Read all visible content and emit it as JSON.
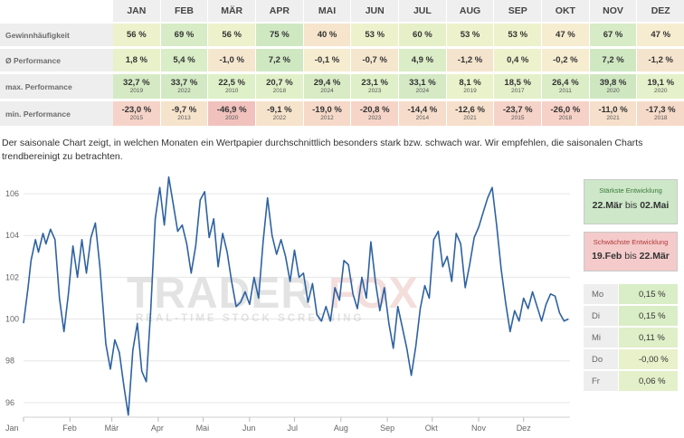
{
  "table": {
    "months": [
      "JAN",
      "FEB",
      "MÄR",
      "APR",
      "MAI",
      "JUN",
      "JUL",
      "AUG",
      "SEP",
      "OKT",
      "NOV",
      "DEZ"
    ],
    "rows": [
      {
        "label": "Gewinnhäufigkeit",
        "values": [
          "56 %",
          "69 %",
          "56 %",
          "75 %",
          "40 %",
          "53 %",
          "60 %",
          "53 %",
          "53 %",
          "47 %",
          "67 %",
          "47 %"
        ]
      },
      {
        "label": "Ø Performance",
        "values": [
          "1,8 %",
          "5,4 %",
          "-1,0 %",
          "7,2 %",
          "-0,1 %",
          "-0,7 %",
          "4,9 %",
          "-1,2 %",
          "0,4 %",
          "-0,2 %",
          "7,2 %",
          "-1,2 %"
        ]
      },
      {
        "label": "max. Performance",
        "values": [
          "32,7 %",
          "33,7 %",
          "22,5 %",
          "20,7 %",
          "29,4 %",
          "23,1 %",
          "33,1 %",
          "8,1 %",
          "18,5 %",
          "26,4 %",
          "39,8 %",
          "19,1 %"
        ],
        "years": [
          "2019",
          "2022",
          "2010",
          "2018",
          "2024",
          "2023",
          "2024",
          "2019",
          "2017",
          "2011",
          "2020",
          "2020"
        ]
      },
      {
        "label": "min. Performance",
        "values": [
          "-23,0 %",
          "-9,7 %",
          "-46,9 %",
          "-9,1 %",
          "-19,0 %",
          "-20,8 %",
          "-14,4 %",
          "-12,6 %",
          "-23,7 %",
          "-26,0 %",
          "-11,0 %",
          "-17,3 %"
        ],
        "years": [
          "2015",
          "2013",
          "2020",
          "2022",
          "2012",
          "2023",
          "2014",
          "2021",
          "2015",
          "2018",
          "2021",
          "2018"
        ]
      }
    ],
    "colors": {
      "row0": [
        "#eef2cc",
        "#d7ecc6",
        "#eef2cc",
        "#cfe8c2",
        "#f7e4cc",
        "#eef2cc",
        "#e6f0c8",
        "#eef2cc",
        "#eef2cc",
        "#f6ecd0",
        "#d7ecc6",
        "#f6ecd0"
      ],
      "row1": [
        "#e8f1ca",
        "#d9edc6",
        "#f5e6ce",
        "#cfe8c2",
        "#f6ecd0",
        "#f5e6ce",
        "#daedc6",
        "#f5e4cd",
        "#eef2cc",
        "#f6ecd0",
        "#cfe8c2",
        "#f5e4cd"
      ],
      "row2": [
        "#d5eac4",
        "#d2e9c3",
        "#def0c8",
        "#e2f0c9",
        "#d8ebc5",
        "#dfefc8",
        "#d4e9c4",
        "#eaf2cb",
        "#e3f0c9",
        "#dbedc6",
        "#cfe7c1",
        "#e5f1ca"
      ],
      "row3": [
        "#f6d3c8",
        "#f6e3cc",
        "#f1c2bd",
        "#f6e3cc",
        "#f6d9c9",
        "#f6d5c8",
        "#f6ddcb",
        "#f6dfcb",
        "#f6d3c8",
        "#f6d1c7",
        "#f6e0cb",
        "#f6dac9"
      ]
    }
  },
  "description": "Der saisonale Chart zeigt, in welchen Monaten ein Wertpapier durchschnittlich besonders stark bzw. schwach war. Wir empfehlen, die saisonalen Charts trendbereinigt zu betrachten.",
  "chart_data": {
    "type": "line",
    "series": [
      {
        "x": [
          0,
          3,
          5,
          8,
          10,
          13,
          15,
          18,
          21,
          24,
          27,
          30,
          33,
          36,
          39,
          42,
          45,
          48,
          51,
          55,
          58,
          61,
          64,
          67,
          70,
          73,
          76,
          79,
          82,
          85,
          88,
          91,
          94,
          97,
          100,
          103,
          106,
          109,
          112,
          115,
          118,
          121,
          124,
          127,
          130,
          133,
          136,
          139,
          142,
          145,
          148,
          151,
          154,
          157,
          160,
          163,
          166,
          169,
          172,
          175,
          178,
          181,
          184,
          187,
          190,
          193,
          196,
          199,
          202,
          205,
          208,
          211,
          214,
          217,
          220,
          223,
          226,
          229,
          232,
          235,
          238,
          241,
          244,
          247,
          250,
          253,
          256,
          259,
          262,
          265,
          268,
          271,
          274,
          277,
          280,
          283,
          286,
          289,
          292,
          295,
          298,
          301,
          304,
          307,
          310,
          313,
          316,
          319,
          322,
          325,
          328,
          331,
          334,
          337,
          340,
          343,
          346,
          349,
          352,
          355,
          358,
          361,
          364
        ],
        "y": [
          99.8,
          101.5,
          102.8,
          103.8,
          103.2,
          104.1,
          103.6,
          104.3,
          103.8,
          101.0,
          99.4,
          101.2,
          103.5,
          102.0,
          103.8,
          102.2,
          103.9,
          104.6,
          102.5,
          98.8,
          97.6,
          99.0,
          98.4,
          96.8,
          95.4,
          98.5,
          99.8,
          97.5,
          97.0,
          100.5,
          104.8,
          106.3,
          104.5,
          106.8,
          105.5,
          104.2,
          104.5,
          103.6,
          102.2,
          103.5,
          105.7,
          106.1,
          103.9,
          104.8,
          102.5,
          104.1,
          103.2,
          101.8,
          100.6,
          100.8,
          101.3,
          100.7,
          102.0,
          101.0,
          103.7,
          105.8,
          104.0,
          103.1,
          103.8,
          103.0,
          101.8,
          103.3,
          102.0,
          102.2,
          100.8,
          101.7,
          100.2,
          99.9,
          100.6,
          99.9,
          101.5,
          100.9,
          102.8,
          102.6,
          101.2,
          100.5,
          102.0,
          101.0,
          103.7,
          101.8,
          100.4,
          101.5,
          99.8,
          98.6,
          100.6,
          99.6,
          98.6,
          97.3,
          98.7,
          100.5,
          101.6,
          101.0,
          103.8,
          104.2,
          102.5,
          103.0,
          101.8,
          104.1,
          103.6,
          101.5,
          102.6,
          103.9,
          104.4,
          105.1,
          105.8,
          106.3,
          104.5,
          102.4,
          100.8,
          99.4,
          100.4,
          99.9,
          101.0,
          100.5,
          101.3,
          100.6,
          99.9,
          100.7,
          101.2,
          101.1,
          100.3,
          99.9,
          100.0
        ],
        "color": "#2e62a1"
      }
    ],
    "x_tick_labels": [
      "Jan",
      "Feb",
      "Mär",
      "Apr",
      "Mai",
      "Jun",
      "Jul",
      "Aug",
      "Sep",
      "Okt",
      "Nov",
      "Dez"
    ],
    "x_tick_positions": [
      0,
      31,
      59,
      90,
      120,
      151,
      181,
      212,
      243,
      273,
      304,
      334
    ],
    "y_ticks": [
      96,
      98,
      100,
      102,
      104,
      106
    ],
    "ylim": [
      95.3,
      107.0
    ],
    "xlim": [
      0,
      365
    ],
    "grid": true
  },
  "watermark": {
    "brand_a": "TRADER",
    "brand_b": "FOX",
    "tagline": "REAL-TIME STOCK SCREENING"
  },
  "strongest": {
    "title": "Stärkste Entwicklung",
    "from": "22.Mär",
    "connector": "bis",
    "to": "02.Mai"
  },
  "weakest": {
    "title": "Schwächste Entwicklung",
    "from": "19.Feb",
    "connector": "bis",
    "to": "22.Mär"
  },
  "weekdays": [
    {
      "day": "Mo",
      "value": "0,15 %",
      "color": "#d9edc6"
    },
    {
      "day": "Di",
      "value": "0,15 %",
      "color": "#d9edc6"
    },
    {
      "day": "Mi",
      "value": "0,11 %",
      "color": "#dfefc8"
    },
    {
      "day": "Do",
      "value": "-0,00 %",
      "color": "#e8f1ca"
    },
    {
      "day": "Fr",
      "value": "0,06 %",
      "color": "#e3f0c9"
    }
  ]
}
